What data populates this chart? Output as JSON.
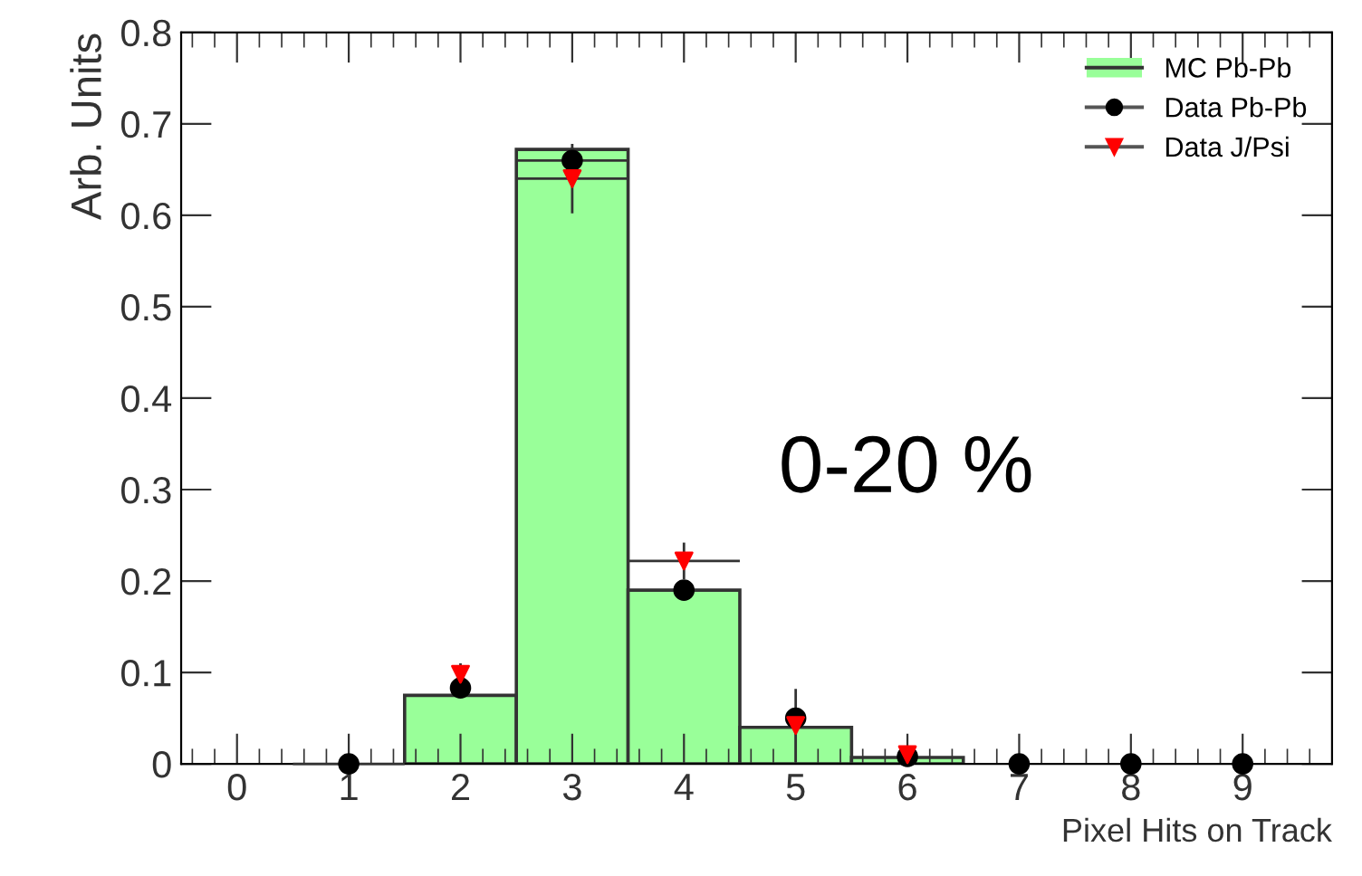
{
  "chart_data": {
    "type": "histogram",
    "xlabel": "Pixel Hits on Track",
    "ylabel": "Arb. Units",
    "annotations": [
      "0-20 %"
    ],
    "bins": [
      -0.5,
      0.5,
      1.5,
      2.5,
      3.5,
      4.5,
      5.5,
      6.5,
      7.5,
      8.5,
      9.5
    ],
    "series": [
      {
        "name": "MC Pb-Pb",
        "color": "#99ff99",
        "values": [
          null,
          null,
          0.075,
          0.672,
          0.19,
          0.04,
          0.007,
          null,
          null,
          null
        ]
      },
      {
        "name": "Data Pb-Pb",
        "type": "scatter",
        "marker": "circle",
        "color": "#000000",
        "x": [
          1,
          2,
          3,
          4,
          5,
          6,
          7,
          8,
          9
        ],
        "values": [
          0.0,
          0.083,
          0.66,
          0.19,
          0.05,
          0.008,
          0.0,
          0.0,
          0.0
        ],
        "errors": [
          null,
          null,
          0.014,
          null,
          null,
          null,
          null,
          null,
          null
        ],
        "xerrors": [
          0.5,
          null,
          0.5,
          null,
          null,
          null,
          null,
          null,
          null
        ]
      },
      {
        "name": "Data J/Psi",
        "type": "scatter",
        "marker": "triangle",
        "color": "#ff0000",
        "x": [
          2,
          3,
          4,
          5,
          6
        ],
        "values": [
          0.098,
          0.64,
          0.222,
          0.042,
          0.01
        ],
        "errors": [
          0.012,
          0.038,
          0.02,
          0.04,
          null
        ],
        "xerrors": [
          null,
          0.5,
          0.5,
          null,
          null
        ]
      }
    ],
    "xlim": [
      -0.5,
      9.8
    ],
    "ylim": [
      0,
      0.8
    ],
    "xticks": [
      0,
      1,
      2,
      3,
      4,
      5,
      6,
      7,
      8,
      9
    ],
    "yticks": [
      0,
      0.1,
      0.2,
      0.3,
      0.4,
      0.5,
      0.6,
      0.7,
      0.8
    ],
    "legend": "top right",
    "grid": false
  }
}
